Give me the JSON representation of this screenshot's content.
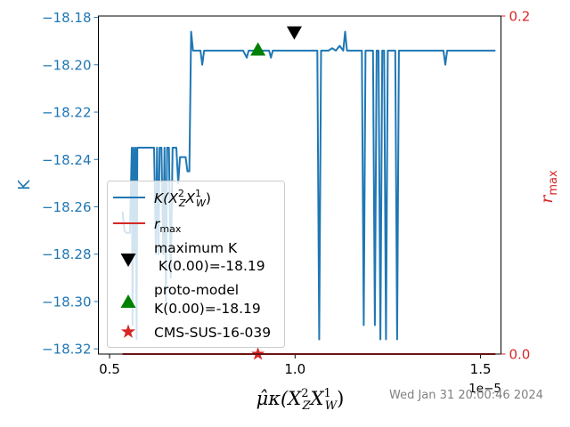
{
  "chart_data": {
    "type": "line",
    "xlabel": "μ̂κ(X²_Z X¹_W)",
    "xlabel_parts": {
      "main": "μ̂κ(X",
      "sup1": "2",
      "sub1": "Z",
      "mid": "X",
      "sup2": "1",
      "sub2": "W",
      "end": ")"
    },
    "ylabel_left": "K",
    "ylabel_right": "r",
    "ylabel_right_sub": "max",
    "x_scale_label": "1e−5",
    "x_scale_factor": 1e-05,
    "xlim": [
      0.47,
      1.555
    ],
    "ylim_left": [
      -18.3222,
      -18.1794
    ],
    "ylim_right": [
      0.0,
      0.2
    ],
    "x_ticks": [
      0.5,
      1.0,
      1.5
    ],
    "x_tick_labels": [
      "0.5",
      "1.0",
      "1.5"
    ],
    "y_left_ticks": [
      -18.18,
      -18.2,
      -18.22,
      -18.24,
      -18.26,
      -18.28,
      -18.3,
      -18.32
    ],
    "y_left_tick_labels": [
      "−18.18",
      "−18.20",
      "−18.22",
      "−18.24",
      "−18.26",
      "−18.28",
      "−18.30",
      "−18.32"
    ],
    "y_right_ticks": [
      0.0,
      0.2
    ],
    "y_right_tick_labels": [
      "0.0",
      "0.2"
    ],
    "series": [
      {
        "axis": "left",
        "color": "#1f77b4",
        "x": [
          0.535,
          0.54,
          0.545,
          0.55,
          0.555,
          0.56,
          0.562,
          0.565,
          0.567,
          0.57,
          0.573,
          0.575,
          0.58,
          0.585,
          0.59,
          0.6,
          0.61,
          0.62,
          0.625,
          0.628,
          0.632,
          0.635,
          0.638,
          0.64,
          0.645,
          0.648,
          0.652,
          0.655,
          0.66,
          0.665,
          0.67,
          0.675,
          0.68,
          0.685,
          0.69,
          0.695,
          0.7,
          0.705,
          0.71,
          0.715,
          0.72,
          0.725,
          0.73,
          0.735,
          0.74,
          0.745,
          0.75,
          0.755,
          0.76,
          0.77,
          0.775,
          0.78,
          0.79,
          0.8,
          0.82,
          0.84,
          0.86,
          0.87,
          0.875,
          0.88,
          0.9,
          0.92,
          0.93,
          0.935,
          0.94,
          0.96,
          0.98,
          1.0,
          1.02,
          1.04,
          1.05,
          1.06,
          1.065,
          1.07,
          1.08,
          1.09,
          1.1,
          1.11,
          1.12,
          1.13,
          1.135,
          1.14,
          1.145,
          1.15,
          1.16,
          1.17,
          1.18,
          1.185,
          1.19,
          1.2,
          1.21,
          1.215,
          1.22,
          1.225,
          1.23,
          1.235,
          1.24,
          1.245,
          1.25,
          1.255,
          1.26,
          1.27,
          1.275,
          1.28,
          1.285,
          1.29,
          1.3,
          1.31,
          1.32,
          1.33,
          1.34,
          1.35,
          1.36,
          1.37,
          1.38,
          1.39,
          1.4,
          1.405,
          1.41,
          1.42,
          1.44,
          1.46,
          1.48,
          1.5,
          1.52,
          1.54
        ],
        "y": [
          -18.262,
          -18.27,
          -18.271,
          -18.271,
          -18.271,
          -18.235,
          -18.31,
          -18.235,
          -18.28,
          -18.235,
          -18.316,
          -18.235,
          -18.235,
          -18.235,
          -18.235,
          -18.235,
          -18.235,
          -18.235,
          -18.28,
          -18.235,
          -18.28,
          -18.235,
          -18.235,
          -18.235,
          -18.28,
          -18.235,
          -18.3,
          -18.235,
          -18.235,
          -18.29,
          -18.235,
          -18.235,
          -18.235,
          -18.25,
          -18.239,
          -18.239,
          -18.239,
          -18.239,
          -18.245,
          -18.245,
          -18.186,
          -18.194,
          -18.194,
          -18.194,
          -18.194,
          -18.194,
          -18.2,
          -18.194,
          -18.194,
          -18.194,
          -18.194,
          -18.194,
          -18.194,
          -18.194,
          -18.194,
          -18.194,
          -18.194,
          -18.197,
          -18.194,
          -18.194,
          -18.194,
          -18.194,
          -18.194,
          -18.197,
          -18.194,
          -18.194,
          -18.194,
          -18.194,
          -18.194,
          -18.194,
          -18.194,
          -18.194,
          -18.316,
          -18.194,
          -18.194,
          -18.194,
          -18.193,
          -18.194,
          -18.192,
          -18.194,
          -18.186,
          -18.194,
          -18.194,
          -18.194,
          -18.194,
          -18.194,
          -18.194,
          -18.31,
          -18.194,
          -18.194,
          -18.194,
          -18.31,
          -18.194,
          -18.194,
          -18.316,
          -18.194,
          -18.194,
          -18.316,
          -18.194,
          -18.194,
          -18.194,
          -18.194,
          -18.316,
          -18.194,
          -18.194,
          -18.194,
          -18.194,
          -18.194,
          -18.194,
          -18.194,
          -18.194,
          -18.194,
          -18.194,
          -18.194,
          -18.194,
          -18.194,
          -18.194,
          -18.2,
          -18.194,
          -18.194,
          -18.194,
          -18.194,
          -18.194,
          -18.194,
          -18.194,
          -18.194
        ]
      },
      {
        "axis": "right",
        "color": "#d62728",
        "x": [
          0.535,
          1.54
        ],
        "y": [
          0.0,
          0.0
        ]
      }
    ],
    "markers": [
      {
        "id": "maximum-k",
        "shape": "triangle-down",
        "color": "#000000",
        "x": 0.998,
        "y": -18.1866,
        "axis": "left"
      },
      {
        "id": "proto-model",
        "shape": "triangle-up",
        "color": "#008000",
        "x": 0.9,
        "y": -18.1935,
        "axis": "left"
      },
      {
        "id": "cms-sus",
        "shape": "star",
        "color": "#d62728",
        "x": 0.9,
        "y": 0.0,
        "axis": "right"
      }
    ],
    "legend": {
      "placement": "lower-left",
      "entries": [
        {
          "label_main": "K(X",
          "sup1": "2",
          "sub1": "Z",
          "mid": "X",
          "sup2": "1",
          "sub2": "W",
          "end": ")"
        },
        {
          "label_main": "r",
          "sub": "max"
        },
        {
          "line1": "maximum K",
          "line2": " K(0.00)=-18.19"
        },
        {
          "line1": "proto-model",
          "line2": "K(0.00)=-18.19"
        },
        {
          "line1": "CMS-SUS-16-039"
        }
      ]
    }
  },
  "timestamp": "Wed Jan 31 20:00:46 2024"
}
